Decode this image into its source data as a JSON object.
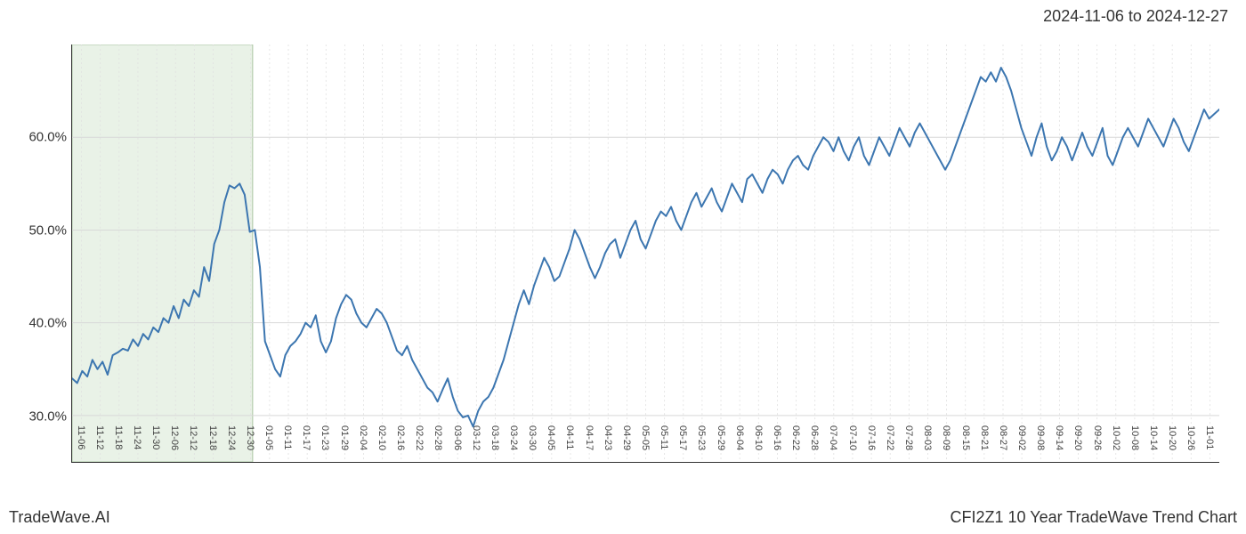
{
  "header": {
    "date_range": "2024-11-06 to 2024-12-27"
  },
  "footer": {
    "left": "TradeWave.AI",
    "right": "CFI2Z1 10 Year TradeWave Trend Chart"
  },
  "chart": {
    "type": "line",
    "background_color": "#ffffff",
    "line_color": "#3c76b0",
    "line_width": 2,
    "grid_major_color": "#d8d8d8",
    "grid_minor_color": "#e0e0e0",
    "grid_minor_dash": "2,3",
    "axis_color": "#333333",
    "highlight_band": {
      "start_index": 0,
      "end_index": 9,
      "fill_color": "#d7e8d4",
      "fill_opacity": 0.55,
      "border_color": "#a8c4a0"
    },
    "y_axis": {
      "min": 25,
      "max": 70,
      "ticks": [
        30,
        40,
        50,
        60
      ],
      "tick_labels": [
        "30.0%",
        "40.0%",
        "50.0%",
        "60.0%"
      ],
      "label_fontsize": 15,
      "label_color": "#333333"
    },
    "x_axis": {
      "labels": [
        "11-06",
        "11-12",
        "11-18",
        "11-24",
        "11-30",
        "12-06",
        "12-12",
        "12-18",
        "12-24",
        "12-30",
        "01-05",
        "01-11",
        "01-17",
        "01-23",
        "01-29",
        "02-04",
        "02-10",
        "02-16",
        "02-22",
        "02-28",
        "03-06",
        "03-12",
        "03-18",
        "03-24",
        "03-30",
        "04-05",
        "04-11",
        "04-17",
        "04-23",
        "04-29",
        "05-05",
        "05-11",
        "05-17",
        "05-23",
        "05-29",
        "06-04",
        "06-10",
        "06-16",
        "06-22",
        "06-28",
        "07-04",
        "07-10",
        "07-16",
        "07-22",
        "07-28",
        "08-03",
        "08-09",
        "08-15",
        "08-21",
        "08-27",
        "09-02",
        "09-08",
        "09-14",
        "09-20",
        "09-26",
        "10-02",
        "10-08",
        "10-14",
        "10-20",
        "10-26",
        "11-01"
      ],
      "label_fontsize": 11,
      "label_color": "#444444",
      "rotation": 90
    },
    "series": [
      34.0,
      33.5,
      34.8,
      34.2,
      36.0,
      35.0,
      35.8,
      34.4,
      36.5,
      36.8,
      37.2,
      37.0,
      38.2,
      37.5,
      38.8,
      38.2,
      39.5,
      39.0,
      40.5,
      40.0,
      41.8,
      40.5,
      42.5,
      41.8,
      43.5,
      42.8,
      46.0,
      44.5,
      48.5,
      50.0,
      53.0,
      54.8,
      54.5,
      55.0,
      53.8,
      49.8,
      50.0,
      46.0,
      38.0,
      36.5,
      35.0,
      34.2,
      36.5,
      37.5,
      38.0,
      38.8,
      40.0,
      39.5,
      40.8,
      38.0,
      36.8,
      38.0,
      40.5,
      42.0,
      43.0,
      42.5,
      41.0,
      40.0,
      39.5,
      40.5,
      41.5,
      41.0,
      40.0,
      38.5,
      37.0,
      36.5,
      37.5,
      36.0,
      35.0,
      34.0,
      33.0,
      32.5,
      31.5,
      32.8,
      34.0,
      32.0,
      30.5,
      29.8,
      30.0,
      28.8,
      30.5,
      31.5,
      32.0,
      33.0,
      34.5,
      36.0,
      38.0,
      40.0,
      42.0,
      43.5,
      42.0,
      44.0,
      45.5,
      47.0,
      46.0,
      44.5,
      45.0,
      46.5,
      48.0,
      50.0,
      49.0,
      47.5,
      46.0,
      44.8,
      46.0,
      47.5,
      48.5,
      49.0,
      47.0,
      48.5,
      50.0,
      51.0,
      49.0,
      48.0,
      49.5,
      51.0,
      52.0,
      51.5,
      52.5,
      51.0,
      50.0,
      51.5,
      53.0,
      54.0,
      52.5,
      53.5,
      54.5,
      53.0,
      52.0,
      53.5,
      55.0,
      54.0,
      53.0,
      55.5,
      56.0,
      55.0,
      54.0,
      55.5,
      56.5,
      56.0,
      55.0,
      56.5,
      57.5,
      58.0,
      57.0,
      56.5,
      58.0,
      59.0,
      60.0,
      59.5,
      58.5,
      60.0,
      58.5,
      57.5,
      59.0,
      60.0,
      58.0,
      57.0,
      58.5,
      60.0,
      59.0,
      58.0,
      59.5,
      61.0,
      60.0,
      59.0,
      60.5,
      61.5,
      60.5,
      59.5,
      58.5,
      57.5,
      56.5,
      57.5,
      59.0,
      60.5,
      62.0,
      63.5,
      65.0,
      66.5,
      66.0,
      67.0,
      66.0,
      67.5,
      66.5,
      65.0,
      63.0,
      61.0,
      59.5,
      58.0,
      60.0,
      61.5,
      59.0,
      57.5,
      58.5,
      60.0,
      59.0,
      57.5,
      59.0,
      60.5,
      59.0,
      58.0,
      59.5,
      61.0,
      58.0,
      57.0,
      58.5,
      60.0,
      61.0,
      60.0,
      59.0,
      60.5,
      62.0,
      61.0,
      60.0,
      59.0,
      60.5,
      62.0,
      61.0,
      59.5,
      58.5,
      60.0,
      61.5,
      63.0,
      62.0,
      62.5,
      63.0
    ]
  }
}
